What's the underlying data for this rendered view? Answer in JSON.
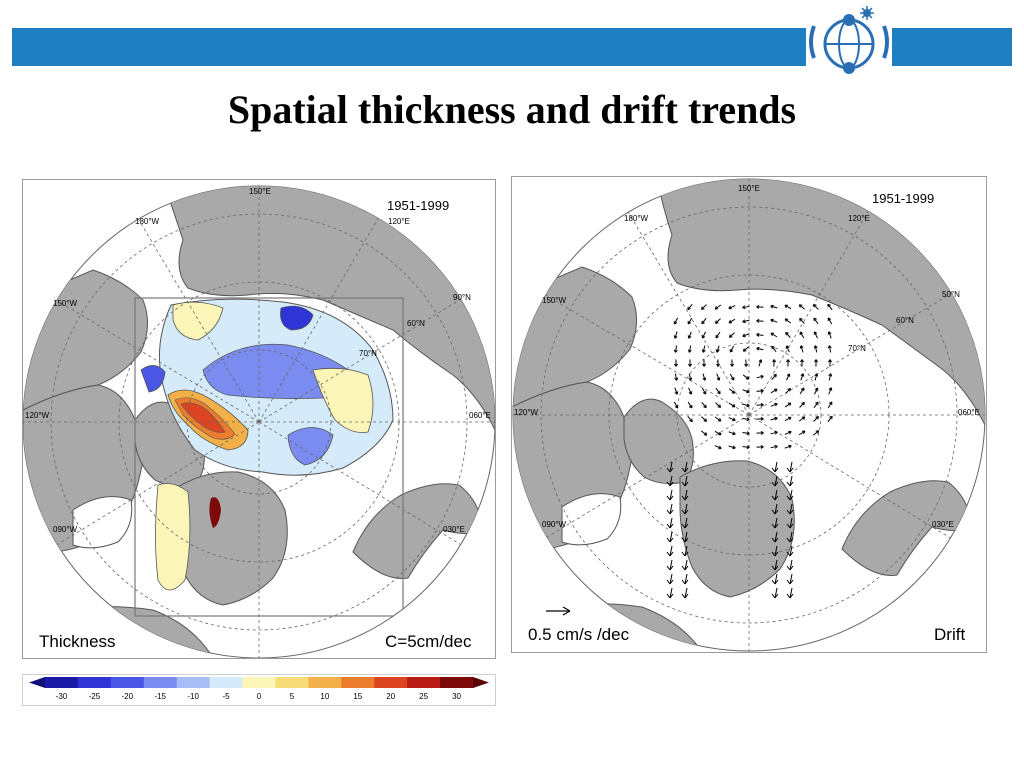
{
  "slide": {
    "title": "Spatial thickness and drift trends",
    "header_bar_color": "#1f7fc0",
    "logo": "globe-network-logo"
  },
  "thickness_panel": {
    "period": "1951-1999",
    "label": "Thickness",
    "contour_interval": "C=5cm/dec",
    "graticule_labels": [
      "150°E",
      "120°E",
      "180°W",
      "150°W",
      "120°W",
      "090°W",
      "90°N",
      "60°N",
      "70°N",
      "060°E",
      "030°E"
    ]
  },
  "drift_panel": {
    "period": "1951-1999",
    "label": "Drift",
    "reference_vector": "0.5 cm/s /dec",
    "graticule_labels": [
      "150°E",
      "120°E",
      "180°W",
      "150°W",
      "120°W",
      "090°W",
      "50°N",
      "60°N",
      "70°N",
      "060°E",
      "030°E"
    ]
  },
  "colorbar": {
    "ticks": [
      "-30",
      "-25",
      "-20",
      "-15",
      "-10",
      "-5",
      "0",
      "5",
      "10",
      "15",
      "20",
      "25",
      "30"
    ],
    "colors": [
      "#1a1aa6",
      "#2f34d6",
      "#4a56e6",
      "#7a8cf0",
      "#a6bdf5",
      "#d6ebfa",
      "#fbf6b8",
      "#f8dc7a",
      "#f3b049",
      "#ec7d2e",
      "#dd4422",
      "#b81a16",
      "#7d0a0a"
    ]
  },
  "colors": {
    "land": "#a9a9a9",
    "ocean": "#ffffff",
    "arrow": "#000000"
  }
}
